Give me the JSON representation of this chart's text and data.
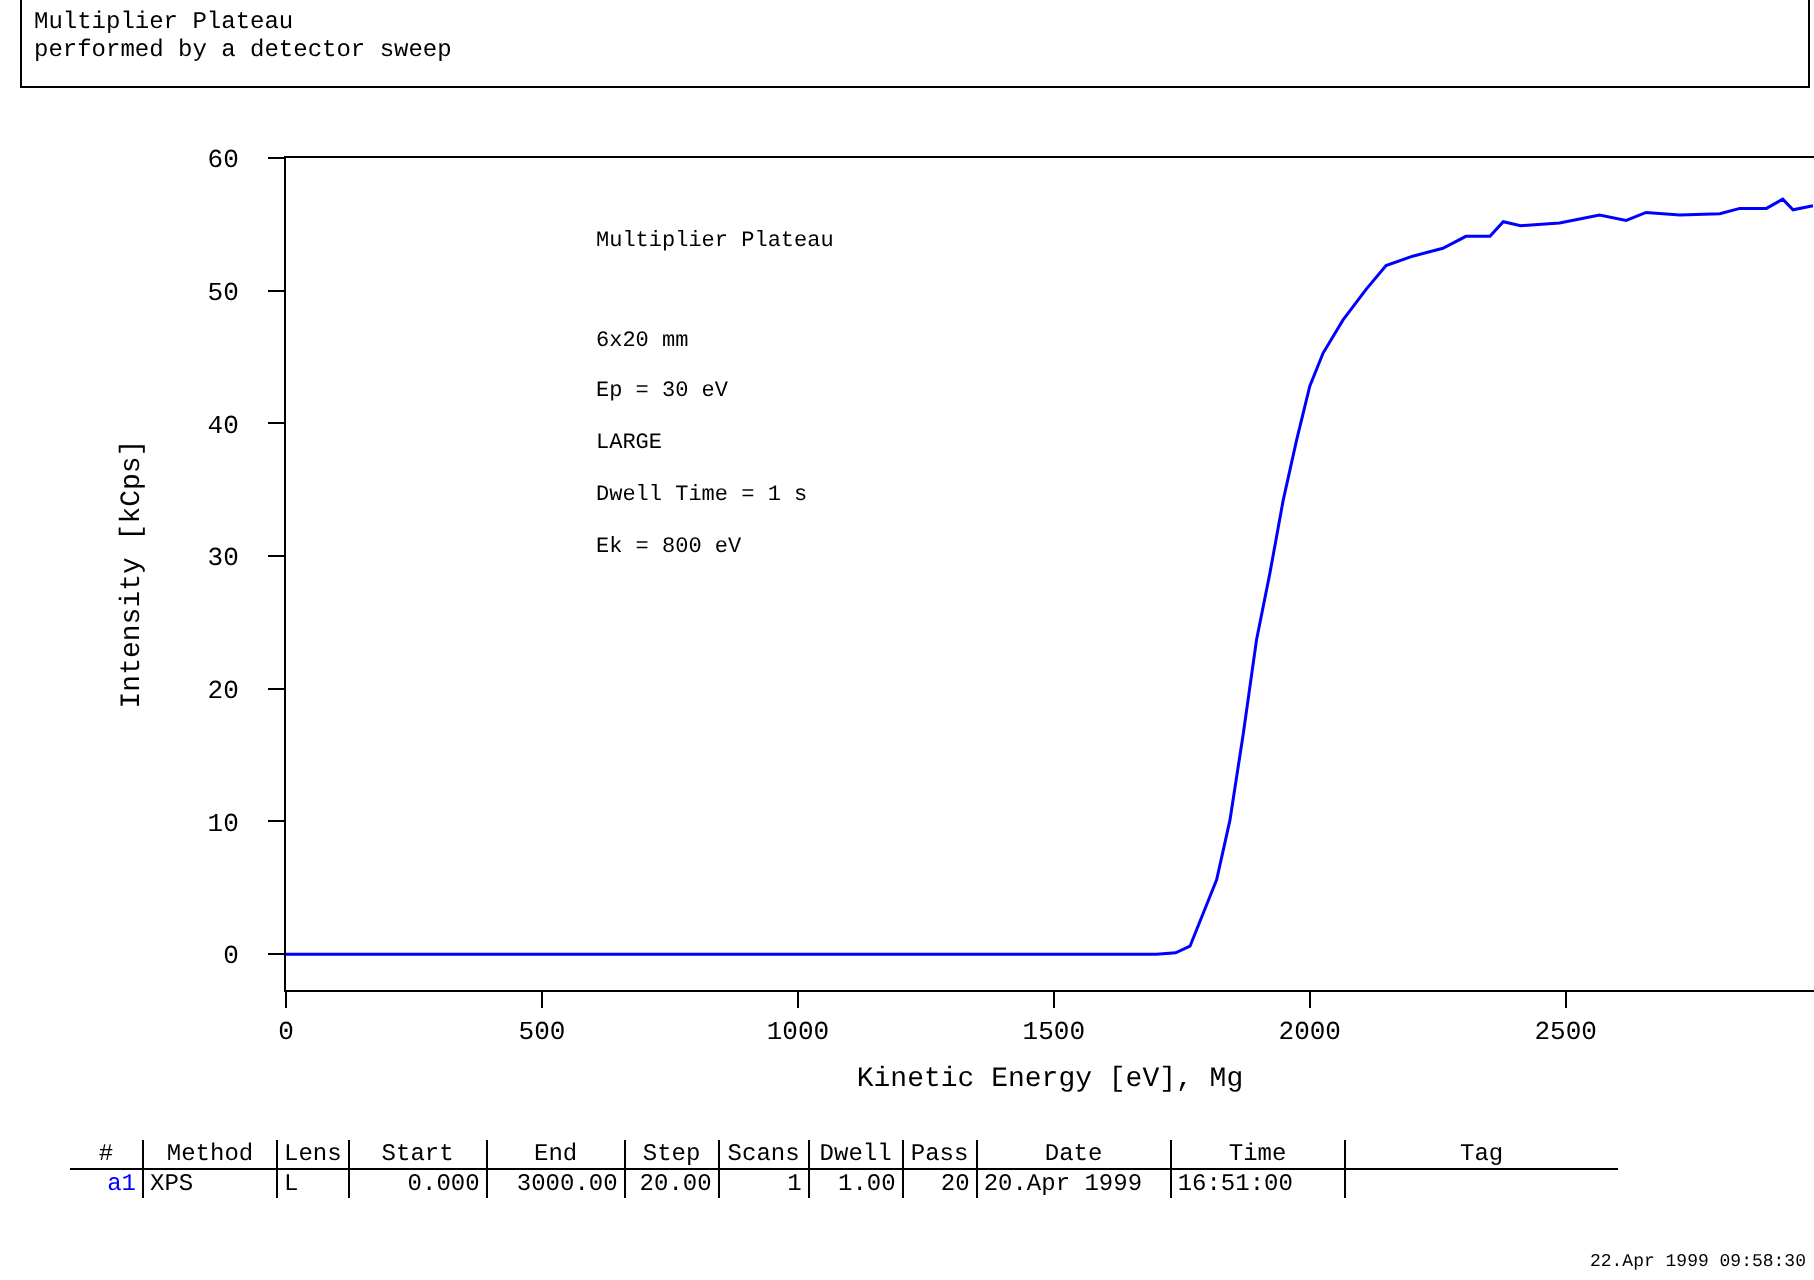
{
  "chart_data": {
    "type": "line",
    "title": "Multiplier Plateau",
    "subtitle": "performed by a detector sweep",
    "xlabel": "Kinetic Energy [eV], Mg",
    "ylabel": "Intensity [kCps]",
    "annotations": [
      "Multiplier Plateau",
      "6x20 mm",
      "Ep = 30 eV",
      "LARGE",
      "Dwell Time = 1 s",
      "Ek = 800 eV",
      "#\tMethod\tLens\tStart\tEnd\tStep\tScans\tDwell\tPass\tDate\tTime\tTag",
      "a1\tXPS\tL\t0.000\t3000.00\t20.00\t1\t1.00\t20\t20.Apr 1999\t16:51:00\t",
      "22.Apr 1999 09:58:30"
    ],
    "x": [
      0,
      1700,
      1738,
      1766,
      1792,
      1818,
      1844,
      1870,
      1896,
      1922,
      1948,
      1974,
      2000,
      2026,
      2065,
      2110,
      2149,
      2201,
      2260,
      2305,
      2352,
      2378,
      2412,
      2488,
      2566,
      2618,
      2657,
      2723,
      2801,
      2840,
      2892,
      2924,
      2944,
      2983
    ],
    "series": [
      {
        "color": "#0000ff",
        "values": [
          0,
          0,
          0.1,
          0.6,
          3.1,
          5.6,
          10.1,
          16.6,
          23.7,
          28.7,
          34.2,
          38.7,
          42.8,
          45.3,
          47.8,
          50.1,
          51.9,
          52.6,
          53.2,
          54.1,
          54.1,
          55.2,
          54.9,
          55.1,
          55.7,
          55.3,
          55.9,
          55.7,
          55.8,
          56.2,
          56.2,
          56.9,
          56.1,
          56.4
        ]
      }
    ],
    "xlim": [
      0,
      2985
    ],
    "ylim": [
      -2.7,
      60
    ],
    "xticks": [
      0,
      500,
      1000,
      1500,
      2000,
      2500
    ],
    "yticks": [
      0,
      10,
      20,
      30,
      40,
      50,
      60
    ],
    "grid": false
  }
}
